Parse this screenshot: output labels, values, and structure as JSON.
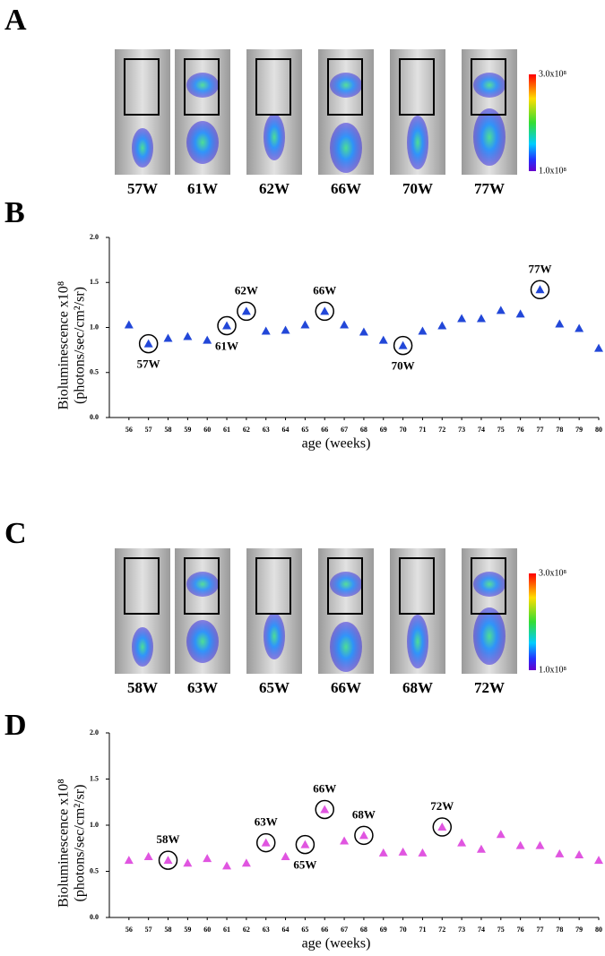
{
  "panel_labels": [
    "A",
    "B",
    "C",
    "D"
  ],
  "image_strips": [
    {
      "labels": [
        "57W",
        "61W",
        "62W",
        "66W",
        "70W",
        "77W"
      ],
      "colorbar": {
        "max": "3.0x10⁸",
        "min": "1.0x10⁸"
      }
    },
    {
      "labels": [
        "58W",
        "63W",
        "65W",
        "66W",
        "68W",
        "72W"
      ],
      "colorbar": {
        "max": "3.0x10⁸",
        "min": "1.0x10⁸"
      }
    }
  ],
  "chart_data": [
    {
      "type": "scatter",
      "marker": "triangle",
      "color": "#2247d8",
      "ylabel": [
        "Bioluminescence x10⁸",
        "(photons/sec/cm²/sr)"
      ],
      "xlabel": "age (weeks)",
      "x": [
        56,
        57,
        58,
        59,
        60,
        61,
        62,
        63,
        64,
        65,
        66,
        67,
        68,
        69,
        70,
        71,
        72,
        73,
        74,
        75,
        76,
        77,
        78,
        79,
        80
      ],
      "values": [
        1.03,
        0.82,
        0.88,
        0.9,
        0.86,
        1.02,
        1.18,
        0.96,
        0.97,
        1.03,
        1.18,
        1.03,
        0.95,
        0.86,
        0.8,
        0.96,
        1.02,
        1.1,
        1.1,
        1.19,
        1.15,
        1.42,
        1.04,
        0.99,
        0.77
      ],
      "xlim": [
        55,
        80
      ],
      "xticks": [
        56,
        57,
        58,
        59,
        60,
        61,
        62,
        63,
        64,
        65,
        66,
        67,
        68,
        69,
        70,
        71,
        72,
        73,
        74,
        75,
        76,
        77,
        78,
        79,
        80
      ],
      "ylim": [
        0,
        2
      ],
      "yticks": [
        {
          "value": 0,
          "label": "0.0"
        },
        {
          "value": 0.5,
          "label": "0.5"
        },
        {
          "value": 1,
          "label": "1.0"
        },
        {
          "value": 1.5,
          "label": "1.5"
        },
        {
          "value": 2,
          "label": "2.0"
        }
      ],
      "annotations": [
        {
          "x": 57,
          "text": "57W",
          "position": "below"
        },
        {
          "x": 61,
          "text": "61W",
          "position": "below"
        },
        {
          "x": 62,
          "text": "62W",
          "position": "above"
        },
        {
          "x": 66,
          "text": "66W",
          "position": "above"
        },
        {
          "x": 70,
          "text": "70W",
          "position": "below"
        },
        {
          "x": 77,
          "text": "77W",
          "position": "above"
        }
      ]
    },
    {
      "type": "scatter",
      "marker": "triangle",
      "color": "#e055e0",
      "ylabel": [
        "Bioluminescence x10⁸",
        "(photons/sec/cm²/sr)"
      ],
      "xlabel": "age (weeks)",
      "x": [
        56,
        57,
        58,
        59,
        60,
        61,
        62,
        63,
        64,
        65,
        66,
        67,
        68,
        69,
        70,
        71,
        72,
        73,
        74,
        75,
        76,
        77,
        78,
        79,
        80
      ],
      "values": [
        0.62,
        0.66,
        0.62,
        0.59,
        0.64,
        0.56,
        0.59,
        0.81,
        0.66,
        0.79,
        1.17,
        0.83,
        0.89,
        0.7,
        0.71,
        0.7,
        0.98,
        0.81,
        0.74,
        0.9,
        0.78,
        0.78,
        0.69,
        0.68,
        0.62
      ],
      "xlim": [
        55,
        80
      ],
      "xticks": [
        56,
        57,
        58,
        59,
        60,
        61,
        62,
        63,
        64,
        65,
        66,
        67,
        68,
        69,
        70,
        71,
        72,
        73,
        74,
        75,
        76,
        77,
        78,
        79,
        80
      ],
      "ylim": [
        0,
        2
      ],
      "yticks": [
        {
          "value": 0,
          "label": "0.0"
        },
        {
          "value": 0.5,
          "label": "0.5"
        },
        {
          "value": 1,
          "label": "1.0"
        },
        {
          "value": 1.5,
          "label": "1.5"
        },
        {
          "value": 2,
          "label": "2.0"
        }
      ],
      "annotations": [
        {
          "x": 58,
          "text": "58W",
          "position": "above"
        },
        {
          "x": 63,
          "text": "63W",
          "position": "above"
        },
        {
          "x": 65,
          "text": "65W",
          "position": "below"
        },
        {
          "x": 66,
          "text": "66W",
          "position": "above"
        },
        {
          "x": 68,
          "text": "68W",
          "position": "above"
        },
        {
          "x": 72,
          "text": "72W",
          "position": "above"
        }
      ]
    }
  ]
}
